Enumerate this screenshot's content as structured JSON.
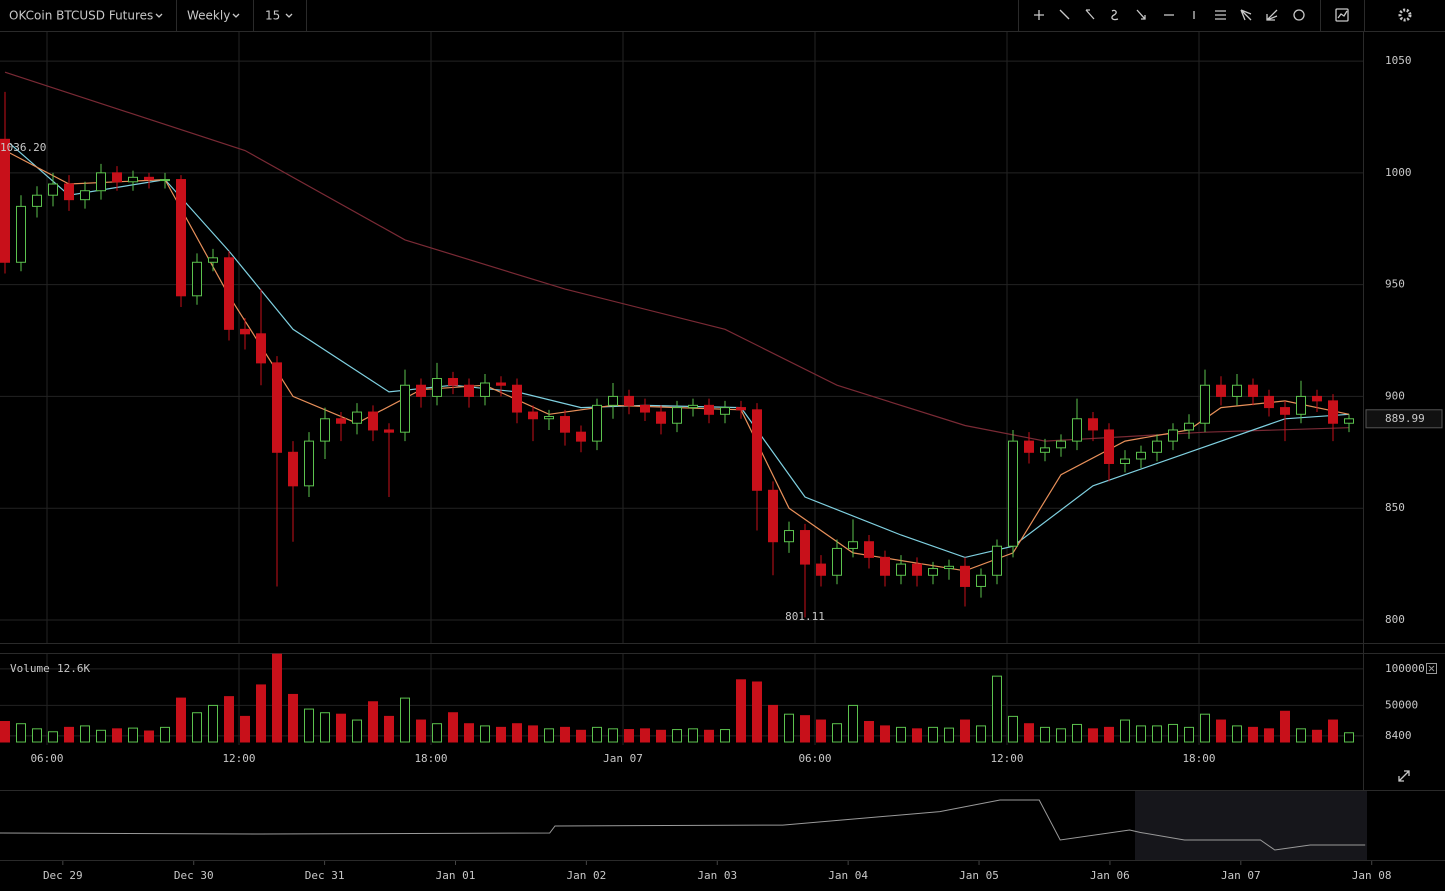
{
  "toolbar": {
    "symbol": "OKCoin BTCUSD Futures",
    "range": "Weekly",
    "interval": "15"
  },
  "chart_data": [
    {
      "type": "candlestick",
      "xlim": [
        -0.3125,
        84.875
      ],
      "xticks": [
        {
          "value": 2.625,
          "label": "06:00"
        },
        {
          "value": 14.625,
          "label": "12:00"
        },
        {
          "value": 26.625,
          "label": "18:00"
        },
        {
          "value": 38.625,
          "label": "Jan 07"
        },
        {
          "value": 50.625,
          "label": "06:00"
        },
        {
          "value": 62.625,
          "label": "12:00"
        },
        {
          "value": 74.625,
          "label": "18:00"
        }
      ],
      "ylim": [
        789.7,
        1063
      ],
      "yticks": [
        800,
        850,
        900,
        950,
        1000,
        1050
      ],
      "grid": true,
      "up_color": "#5cc24e",
      "down_color": "#c8101a",
      "open": [
        1015,
        960,
        985,
        990,
        995,
        988,
        992,
        1000,
        996,
        998,
        997,
        997,
        945,
        960,
        962,
        930,
        928,
        915,
        875,
        860,
        880,
        890,
        888,
        893,
        885,
        884,
        905,
        900,
        908,
        905,
        900,
        906,
        905,
        893,
        890,
        891,
        884,
        880,
        896,
        900,
        896,
        893,
        888,
        895,
        896,
        892,
        895,
        894,
        858,
        835,
        840,
        825,
        820,
        832,
        835,
        828,
        820,
        825,
        820,
        823,
        824,
        815,
        820,
        833,
        880,
        875,
        877,
        880,
        890,
        885,
        870,
        872,
        875,
        880,
        885,
        888,
        905,
        900,
        905,
        900,
        895,
        892,
        900,
        898,
        888
      ],
      "high": [
        1036.2,
        990,
        994,
        1000,
        999,
        996,
        1004,
        1003,
        1001,
        1000,
        1000,
        999,
        964,
        966,
        965,
        935,
        948,
        918,
        880,
        884,
        895,
        893,
        897,
        896,
        888,
        912,
        908,
        915,
        911,
        908,
        910,
        909,
        908,
        896,
        894,
        894,
        887,
        899,
        906,
        903,
        899,
        896,
        898,
        899,
        899,
        898,
        898,
        897,
        862,
        844,
        843,
        829,
        836,
        845,
        838,
        831,
        829,
        828,
        826,
        827,
        828,
        823,
        836,
        885,
        884,
        881,
        883,
        899,
        893,
        888,
        876,
        878,
        883,
        888,
        892,
        912,
        909,
        910,
        908,
        903,
        898,
        907,
        903,
        901,
        892
      ],
      "low": [
        955,
        956,
        980,
        985,
        983,
        984,
        988,
        992,
        992,
        993,
        993,
        940,
        941,
        956,
        925,
        921,
        905,
        815,
        835,
        855,
        872,
        880,
        883,
        880,
        855,
        880,
        895,
        896,
        901,
        895,
        896,
        900,
        888,
        880,
        885,
        878,
        875,
        876,
        890,
        892,
        889,
        883,
        884,
        891,
        888,
        888,
        890,
        840,
        820,
        830,
        801.11,
        815,
        816,
        828,
        823,
        815,
        816,
        815,
        816,
        818,
        806,
        810,
        816,
        828,
        870,
        871,
        873,
        876,
        880,
        862,
        866,
        868,
        871,
        876,
        881,
        884,
        896,
        896,
        896,
        891,
        880,
        888,
        893,
        880,
        884
      ],
      "close": [
        960,
        985,
        990,
        995,
        988,
        992,
        1000,
        996,
        998,
        997,
        997,
        945,
        960,
        962,
        930,
        928,
        915,
        875,
        860,
        880,
        890,
        888,
        893,
        885,
        884,
        905,
        900,
        908,
        905,
        900,
        906,
        905,
        893,
        890,
        891,
        884,
        880,
        896,
        900,
        896,
        893,
        888,
        895,
        896,
        892,
        895,
        894,
        858,
        835,
        840,
        825,
        820,
        832,
        835,
        828,
        820,
        825,
        820,
        823,
        824,
        815,
        820,
        833,
        880,
        875,
        877,
        880,
        890,
        885,
        870,
        872,
        875,
        880,
        885,
        888,
        905,
        900,
        905,
        900,
        895,
        892,
        900,
        898,
        888,
        889.99
      ],
      "high_label": "1036.20",
      "overlays": [
        {
          "color": "#7a2a35",
          "x": [
            0,
            15,
            25,
            35,
            45,
            52,
            60,
            65,
            75,
            84
          ],
          "values": [
            1045,
            1010,
            970,
            948,
            930,
            905,
            887,
            880,
            884,
            886
          ]
        },
        {
          "color": "#7fd0e0",
          "x": [
            0,
            4,
            10,
            14,
            18,
            24,
            28,
            32,
            36,
            40,
            46,
            50,
            56,
            60,
            63,
            68,
            74,
            80,
            84
          ],
          "values": [
            1015,
            990,
            997,
            965,
            930,
            902,
            905,
            902,
            895,
            896,
            895,
            855,
            838,
            828,
            833,
            860,
            875,
            890,
            892
          ]
        },
        {
          "color": "#e8905a",
          "x": [
            0,
            4,
            10,
            14,
            18,
            22,
            26,
            30,
            34,
            38,
            46,
            49,
            53,
            60,
            63,
            66,
            70,
            74,
            76,
            80,
            84
          ],
          "values": [
            1010,
            995,
            997,
            945,
            900,
            888,
            903,
            905,
            892,
            896,
            894,
            850,
            830,
            822,
            830,
            865,
            880,
            885,
            895,
            898,
            892
          ]
        }
      ]
    },
    {
      "type": "bar",
      "ylim": [
        0,
        123000
      ],
      "yticks": [
        8400,
        50000,
        100000
      ],
      "series": [
        {
          "name": "Volume",
          "values": [
            28000,
            25000,
            18000,
            14000,
            20000,
            22000,
            16000,
            18000,
            19000,
            15000,
            20000,
            60000,
            40000,
            50000,
            62000,
            35000,
            78000,
            120000,
            65000,
            45000,
            40000,
            38000,
            30000,
            55000,
            35000,
            60000,
            30000,
            25000,
            40000,
            25000,
            22000,
            20000,
            25000,
            22000,
            18000,
            20000,
            16000,
            20000,
            18000,
            17000,
            18000,
            16000,
            17000,
            18000,
            16000,
            17000,
            85000,
            82000,
            50000,
            38000,
            36000,
            30000,
            25000,
            50000,
            28000,
            22000,
            20000,
            18000,
            20000,
            19000,
            30000,
            22000,
            90000,
            35000,
            25000,
            20000,
            18000,
            24000,
            18000,
            20000,
            30000,
            22000,
            22000,
            24000,
            20000,
            38000,
            30000,
            22000,
            20000,
            18000,
            42000,
            18000,
            16000,
            30000,
            12600
          ],
          "value_labels": [
            null,
            null,
            null,
            null,
            null,
            null,
            null,
            null,
            null,
            null,
            null,
            null,
            null,
            null,
            null,
            null,
            null,
            null,
            null,
            null,
            null,
            null,
            null,
            null,
            null,
            null,
            null,
            null,
            null,
            null,
            null,
            null,
            null,
            null,
            null,
            null,
            null,
            null,
            null,
            null,
            null,
            null,
            null,
            null,
            null,
            null,
            null,
            null,
            null,
            null,
            null,
            null,
            null,
            null,
            null,
            null,
            null,
            null,
            null,
            null,
            null,
            null,
            null,
            null,
            null,
            null,
            null,
            null,
            null,
            null,
            null,
            null,
            null,
            null,
            null,
            null,
            null,
            null,
            null,
            null,
            null,
            null,
            null,
            null,
            "12.6K"
          ]
        }
      ]
    },
    {
      "type": "line",
      "color": "#9a9a9a",
      "xlim": [
        -0.48,
        10.56
      ],
      "xticks": [
        {
          "value": 0,
          "label": "Dec 29"
        },
        {
          "value": 1,
          "label": "Dec 30"
        },
        {
          "value": 2,
          "label": "Dec 31"
        },
        {
          "value": 3,
          "label": "Jan 01"
        },
        {
          "value": 4,
          "label": "Jan 02"
        },
        {
          "value": 5,
          "label": "Jan 03"
        },
        {
          "value": 6,
          "label": "Jan 04"
        },
        {
          "value": 7,
          "label": "Jan 05"
        },
        {
          "value": 8,
          "label": "Jan 06"
        },
        {
          "value": 9,
          "label": "Jan 07"
        },
        {
          "value": 10,
          "label": "Jan 08"
        }
      ],
      "ylim": [
        400,
        1200
      ],
      "x": [
        -0.48,
        1.5,
        3.72,
        3.76,
        5.5,
        6.7,
        7.16,
        7.46,
        7.62,
        8.15,
        8.23,
        8.57,
        9.15,
        9.26,
        9.53,
        9.95
      ],
      "values": [
        732,
        720,
        732,
        818,
        830,
        996,
        1138,
        1138,
        646,
        769,
        740,
        646,
        646,
        523,
        585,
        585
      ]
    }
  ]
}
